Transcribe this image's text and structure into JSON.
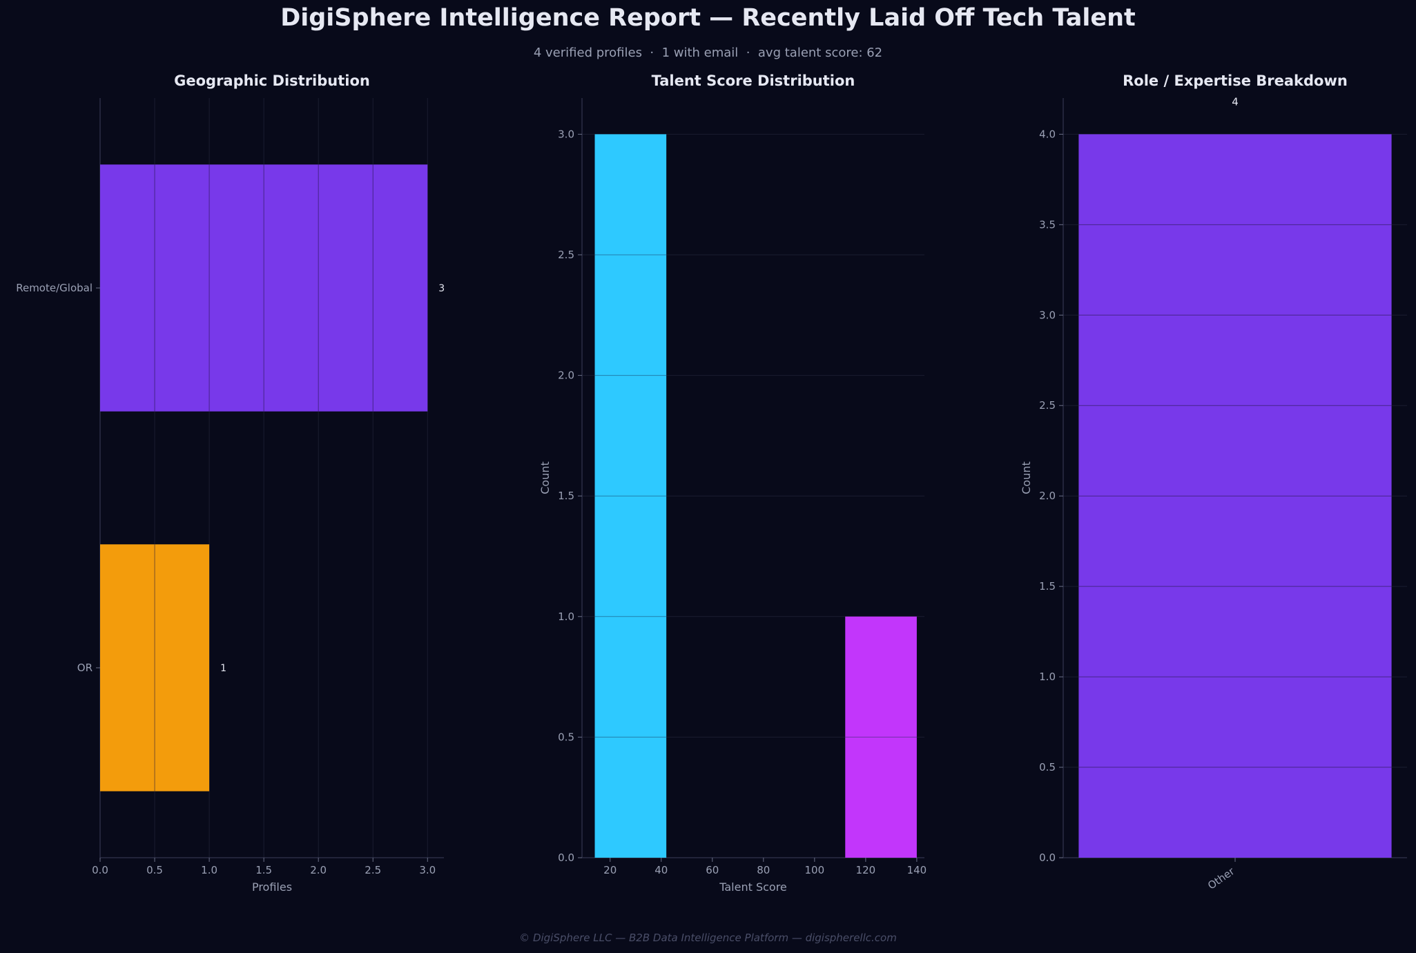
{
  "title": "DigiSphere Intelligence Report — Recently Laid Off Tech Talent",
  "subtitle": "4 verified profiles  ·  1 with email  ·  avg talent score: 62",
  "footer": "© DigiSphere LLC — B2B Data Intelligence Platform — digispherellc.com",
  "colors": {
    "background": "#080a1a",
    "purple": "#7839ea",
    "amber": "#f39c0c",
    "cyan": "#2ec9ff",
    "magenta": "#c236fb"
  },
  "chart_data": [
    {
      "type": "bar",
      "orientation": "horizontal",
      "title": "Geographic Distribution",
      "xlabel": "Profiles",
      "ylabel": "",
      "categories": [
        "Remote/Global",
        "OR"
      ],
      "values": [
        3,
        1
      ],
      "data_labels": [
        "3",
        "1"
      ],
      "colors": [
        "#7839ea",
        "#f39c0c"
      ],
      "xlim": [
        0,
        3.15
      ],
      "xticks": [
        "0.0",
        "0.5",
        "1.0",
        "1.5",
        "2.0",
        "2.5",
        "3.0"
      ],
      "grid": "vertical"
    },
    {
      "type": "histogram",
      "title": "Talent Score Distribution",
      "xlabel": "Talent Score",
      "ylabel": "Count",
      "bins": [
        {
          "x0": 14,
          "x1": 42,
          "count": 3,
          "color": "#2ec9ff"
        },
        {
          "x0": 112,
          "x1": 140,
          "count": 1,
          "color": "#c236fb"
        }
      ],
      "xlim": [
        9,
        143
      ],
      "ylim": [
        0,
        3.15
      ],
      "xticks": [
        "20",
        "40",
        "60",
        "80",
        "100",
        "120",
        "140"
      ],
      "yticks": [
        "0.0",
        "0.5",
        "1.0",
        "1.5",
        "2.0",
        "2.5",
        "3.0"
      ],
      "grid": "horizontal"
    },
    {
      "type": "bar",
      "title": "Role / Expertise Breakdown",
      "xlabel": "",
      "ylabel": "Count",
      "categories": [
        "Other"
      ],
      "values": [
        4
      ],
      "data_labels": [
        "4"
      ],
      "colors": [
        "#7839ea"
      ],
      "ylim": [
        0,
        4.2
      ],
      "yticks": [
        "0.0",
        "0.5",
        "1.0",
        "1.5",
        "2.0",
        "2.5",
        "3.0",
        "3.5",
        "4.0"
      ],
      "grid": "horizontal"
    }
  ]
}
